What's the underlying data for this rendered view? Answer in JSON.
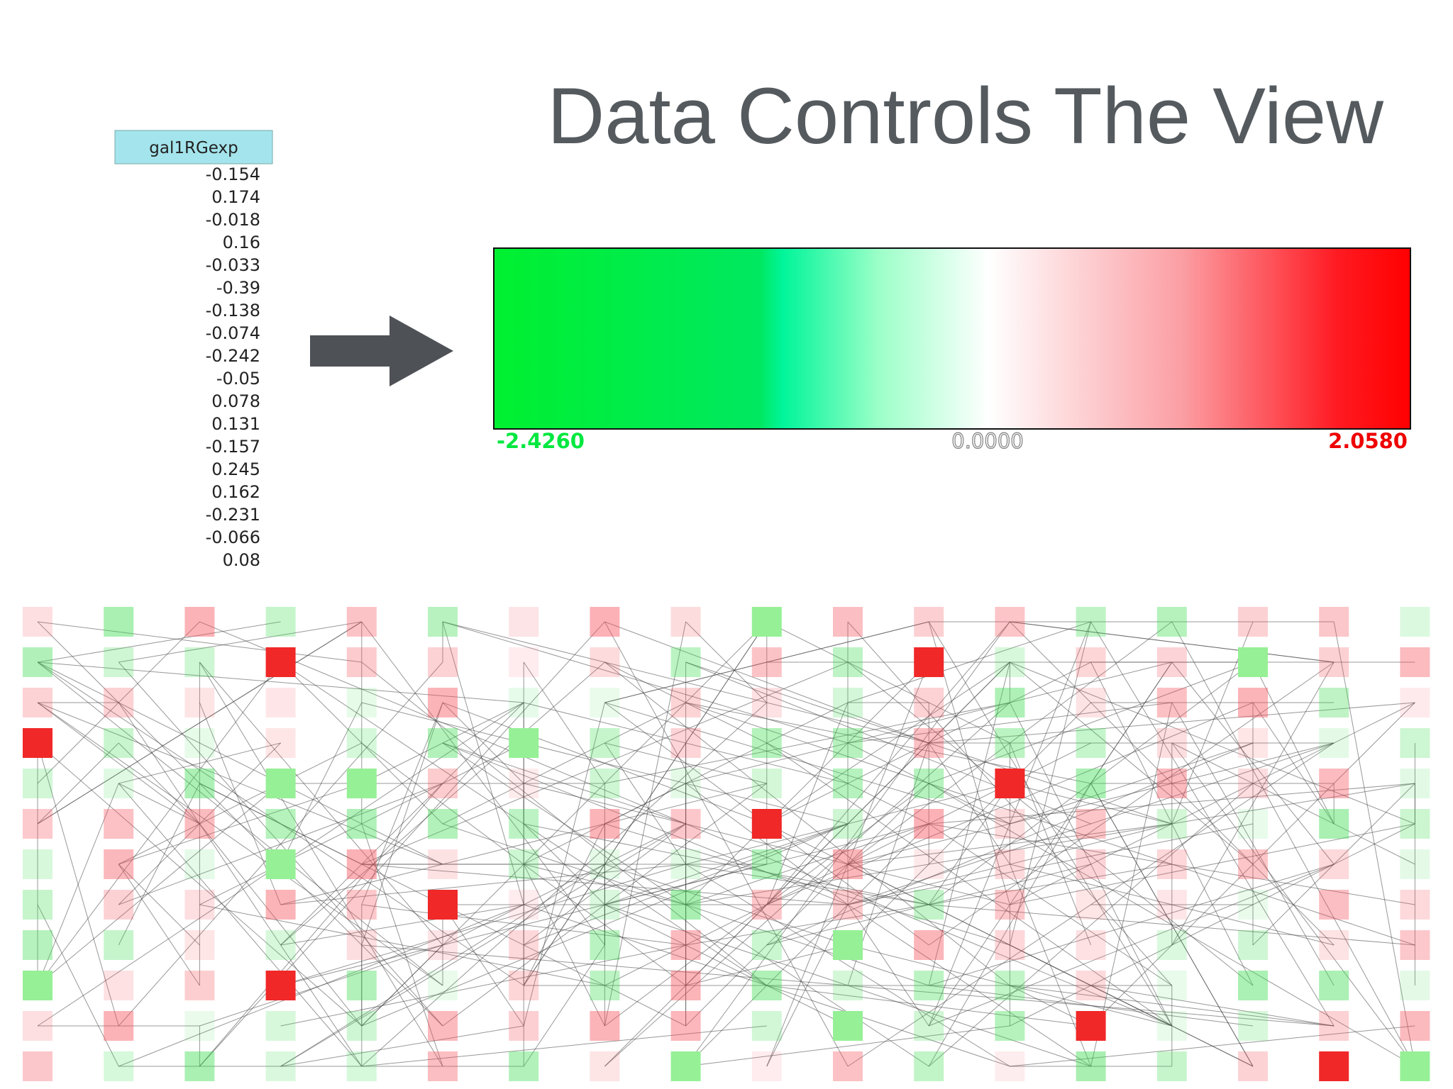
{
  "title": "Data Controls The View",
  "table": {
    "header": "gal1RGexp",
    "rows": [
      "-0.154",
      "0.174",
      "-0.018",
      "0.16",
      "-0.033",
      "-0.39",
      "-0.138",
      "-0.074",
      "-0.242",
      "-0.05",
      "0.078",
      "0.131",
      "-0.157",
      "0.245",
      "0.162",
      "-0.231",
      "-0.066",
      "0.08"
    ]
  },
  "color_scale": {
    "min_label": "-2.4260",
    "mid_label": "0.0000",
    "max_label": "2.0580"
  }
}
